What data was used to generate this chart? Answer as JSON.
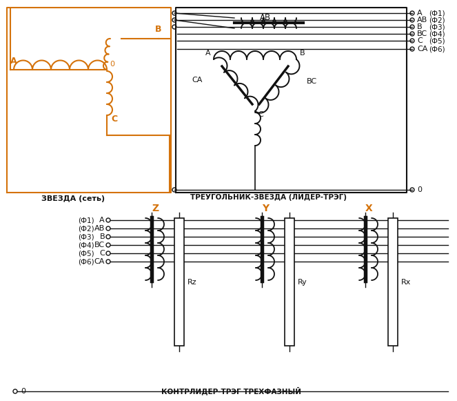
{
  "bg": "#ffffff",
  "org": "#D4720A",
  "blk": "#111111",
  "title_top": "ТРЕУГОЛЬНИК-ЗВЕЗДА (ЛИДЕР-ТРЭГ)",
  "title_star": "ЗВЕЗДА (сеть)",
  "title_bot": "КОНТРЛИДЕР-ТРЭГ ТРЕХФАЗНЫЙ",
  "rlabels": [
    "A",
    "AB",
    "B",
    "BC",
    "C",
    "CA"
  ],
  "rphi": [
    "(Ф1)",
    "(Ф2)",
    "(Ф3)",
    "(Ф4)",
    "(Ф5)",
    "(Ф6)"
  ],
  "blabels": [
    "A",
    "AB",
    "B",
    "BC",
    "C",
    "CA"
  ],
  "bphi": [
    "(Ф1)",
    "(Ф2)",
    "(Ф3)",
    "(Ф4)",
    "(Ф5)",
    "(Ф6)"
  ],
  "ulabels": [
    "Z",
    "Y",
    "X"
  ],
  "rlbls": [
    "Rz",
    "Ry",
    "Rx"
  ]
}
